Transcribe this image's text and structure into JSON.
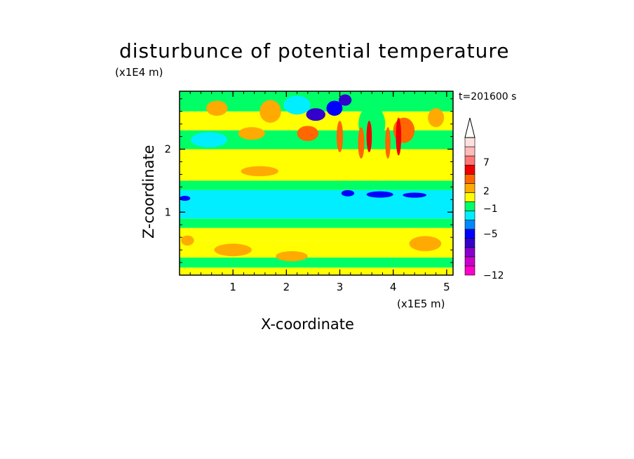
{
  "chart_data": {
    "type": "heatmap",
    "title": "disturbunce of potential temperature",
    "xlabel": "X-coordinate",
    "ylabel": "Z-coordinate",
    "x_scale_label": "(x1E5 m)",
    "y_scale_label": "(x1E4 m)",
    "time_label": "t=201600 s",
    "xlim": [
      0,
      5.12
    ],
    "ylim": [
      0,
      2.92
    ],
    "x_ticks": [
      1,
      2,
      3,
      4,
      5
    ],
    "y_ticks": [
      1,
      2
    ],
    "colorbar_labels": [
      {
        "value": 7,
        "text": "7"
      },
      {
        "value": 2,
        "text": "2"
      },
      {
        "value": -1,
        "text": "−1"
      },
      {
        "value": -5,
        "text": "−5"
      },
      {
        "value": -12,
        "text": "−12"
      }
    ],
    "levels": [
      {
        "color": "#ff00cc"
      },
      {
        "color": "#cc00cc"
      },
      {
        "color": "#8800cc"
      },
      {
        "color": "#3300cc"
      },
      {
        "color": "#0000ff"
      },
      {
        "color": "#0088ff"
      },
      {
        "color": "#00eeff"
      },
      {
        "color": "#00ff66"
      },
      {
        "color": "#ffff00"
      },
      {
        "color": "#ffaa00"
      },
      {
        "color": "#ff6600"
      },
      {
        "color": "#ee0000"
      },
      {
        "color": "#ff7777"
      },
      {
        "color": "#ffbbbb"
      },
      {
        "color": "#ffe0e0"
      }
    ],
    "colors": {
      "lower_band": "#ffff00",
      "mid_band": "#00eeff",
      "green_band": "#00ff66"
    },
    "bands": [
      {
        "z_from": 0.0,
        "z_to": 0.12,
        "color": "#ffff00"
      },
      {
        "z_from": 0.12,
        "z_to": 0.28,
        "color": "#00ff66"
      },
      {
        "z_from": 0.28,
        "z_to": 0.55,
        "color": "#ffff00"
      },
      {
        "z_from": 0.55,
        "z_to": 0.75,
        "color": "#ffff00"
      },
      {
        "z_from": 0.75,
        "z_to": 0.9,
        "color": "#00ff66"
      },
      {
        "z_from": 0.9,
        "z_to": 1.35,
        "color": "#00eeff"
      },
      {
        "z_from": 1.35,
        "z_to": 1.5,
        "color": "#00ff66"
      },
      {
        "z_from": 1.5,
        "z_to": 1.75,
        "color": "#ffff00"
      },
      {
        "z_from": 1.75,
        "z_to": 2.0,
        "color": "#ffff00"
      },
      {
        "z_from": 2.0,
        "z_to": 2.3,
        "color": "#00ff66"
      },
      {
        "z_from": 2.3,
        "z_to": 2.6,
        "color": "#ffff00"
      },
      {
        "z_from": 2.6,
        "z_to": 2.92,
        "color": "#00ff66"
      }
    ],
    "blobs": [
      {
        "x": 0.55,
        "z": 2.15,
        "rx": 0.22,
        "rz": 0.07,
        "color": "#0000ff"
      },
      {
        "x": 0.55,
        "z": 2.15,
        "rx": 0.34,
        "rz": 0.12,
        "color": "#00eeff"
      },
      {
        "x": 1.35,
        "z": 2.25,
        "rx": 0.25,
        "rz": 0.1,
        "color": "#ffaa00"
      },
      {
        "x": 0.7,
        "z": 2.65,
        "rx": 0.2,
        "rz": 0.12,
        "color": "#ffaa00"
      },
      {
        "x": 1.7,
        "z": 2.6,
        "rx": 0.2,
        "rz": 0.18,
        "color": "#ffaa00"
      },
      {
        "x": 2.2,
        "z": 2.7,
        "rx": 0.25,
        "rz": 0.15,
        "color": "#00eeff"
      },
      {
        "x": 2.55,
        "z": 2.55,
        "rx": 0.18,
        "rz": 0.1,
        "color": "#3300cc"
      },
      {
        "x": 2.9,
        "z": 2.65,
        "rx": 0.15,
        "rz": 0.12,
        "color": "#0000ff"
      },
      {
        "x": 3.1,
        "z": 2.78,
        "rx": 0.12,
        "rz": 0.09,
        "color": "#3300cc"
      },
      {
        "x": 2.4,
        "z": 2.25,
        "rx": 0.2,
        "rz": 0.12,
        "color": "#ff6600"
      },
      {
        "x": 3.15,
        "z": 1.3,
        "rx": 0.12,
        "rz": 0.05,
        "color": "#0000ff"
      },
      {
        "x": 3.75,
        "z": 1.28,
        "rx": 0.25,
        "rz": 0.05,
        "color": "#0000ff"
      },
      {
        "x": 4.4,
        "z": 1.27,
        "rx": 0.22,
        "rz": 0.04,
        "color": "#0000ff"
      },
      {
        "x": 0.1,
        "z": 1.22,
        "rx": 0.1,
        "rz": 0.04,
        "color": "#0000ff"
      },
      {
        "x": 1.0,
        "z": 0.4,
        "rx": 0.35,
        "rz": 0.1,
        "color": "#ffaa00"
      },
      {
        "x": 2.1,
        "z": 0.3,
        "rx": 0.3,
        "rz": 0.08,
        "color": "#ffaa00"
      },
      {
        "x": 4.6,
        "z": 0.5,
        "rx": 0.3,
        "rz": 0.12,
        "color": "#ffaa00"
      },
      {
        "x": 4.2,
        "z": 2.3,
        "rx": 0.2,
        "rz": 0.2,
        "color": "#ff6600"
      },
      {
        "x": 4.8,
        "z": 2.5,
        "rx": 0.15,
        "rz": 0.15,
        "color": "#ffaa00"
      },
      {
        "x": 3.6,
        "z": 2.4,
        "rx": 0.25,
        "rz": 0.3,
        "color": "#00ff66"
      },
      {
        "x": 3.4,
        "z": 2.1,
        "rx": 0.06,
        "rz": 0.25,
        "color": "#ff6600"
      },
      {
        "x": 3.55,
        "z": 2.2,
        "rx": 0.05,
        "rz": 0.25,
        "color": "#ee0000"
      },
      {
        "x": 3.9,
        "z": 2.1,
        "rx": 0.05,
        "rz": 0.25,
        "color": "#ff6600"
      },
      {
        "x": 4.1,
        "z": 2.2,
        "rx": 0.05,
        "rz": 0.3,
        "color": "#ee0000"
      },
      {
        "x": 3.0,
        "z": 2.2,
        "rx": 0.06,
        "rz": 0.25,
        "color": "#ff6600"
      },
      {
        "x": 1.5,
        "z": 1.65,
        "rx": 0.35,
        "rz": 0.08,
        "color": "#ffaa00"
      },
      {
        "x": 0.15,
        "z": 0.55,
        "rx": 0.12,
        "rz": 0.08,
        "color": "#ffaa00"
      }
    ]
  }
}
